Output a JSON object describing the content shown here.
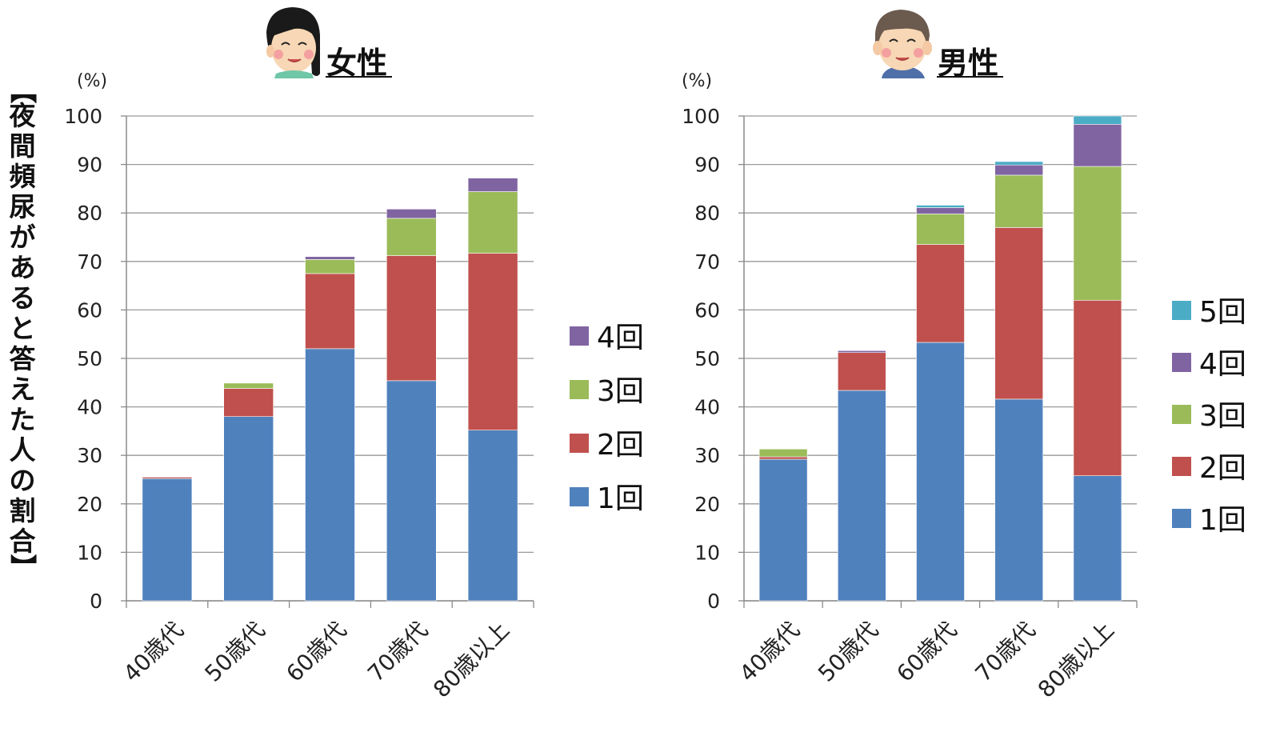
{
  "y_axis_title": "【夜間頻尿があると答えた人の割合】",
  "chart_data": [
    {
      "type": "bar",
      "stacked": true,
      "title": "女性",
      "ylabel_unit": "(%)",
      "ylim": [
        0,
        100
      ],
      "yticks": [
        0,
        10,
        20,
        30,
        40,
        50,
        60,
        70,
        80,
        90,
        100
      ],
      "grid": true,
      "legend_position": "right",
      "categories": [
        "40歳代",
        "50歳代",
        "60歳代",
        "70歳代",
        "80歳以上"
      ],
      "series": [
        {
          "name": "1回",
          "color": "#4F81BD",
          "values": [
            25.2,
            38.0,
            52.0,
            45.4,
            35.2
          ]
        },
        {
          "name": "2回",
          "color": "#C0504D",
          "values": [
            0.3,
            5.8,
            15.5,
            25.8,
            36.5
          ]
        },
        {
          "name": "3回",
          "color": "#9BBB59",
          "values": [
            0,
            1.1,
            2.9,
            7.7,
            12.7
          ]
        },
        {
          "name": "4回",
          "color": "#8064A2",
          "values": [
            0,
            0,
            0.6,
            1.9,
            2.8
          ]
        }
      ]
    },
    {
      "type": "bar",
      "stacked": true,
      "title": "男性",
      "ylabel_unit": "(%)",
      "ylim": [
        0,
        100
      ],
      "yticks": [
        0,
        10,
        20,
        30,
        40,
        50,
        60,
        70,
        80,
        90,
        100
      ],
      "grid": true,
      "legend_position": "right",
      "categories": [
        "40歳代",
        "50歳代",
        "60歳代",
        "70歳代",
        "80歳以上"
      ],
      "series": [
        {
          "name": "1回",
          "color": "#4F81BD",
          "values": [
            29.2,
            43.4,
            53.3,
            41.6,
            25.8
          ]
        },
        {
          "name": "2回",
          "color": "#C0504D",
          "values": [
            0.5,
            7.8,
            20.2,
            35.4,
            36.2
          ]
        },
        {
          "name": "3回",
          "color": "#9BBB59",
          "values": [
            1.6,
            0,
            6.3,
            10.8,
            27.6
          ]
        },
        {
          "name": "4回",
          "color": "#8064A2",
          "values": [
            0,
            0.4,
            1.3,
            2.1,
            8.7
          ]
        },
        {
          "name": "5回",
          "color": "#4BACC6",
          "values": [
            0,
            0,
            0.5,
            0.7,
            1.7
          ]
        }
      ]
    }
  ]
}
